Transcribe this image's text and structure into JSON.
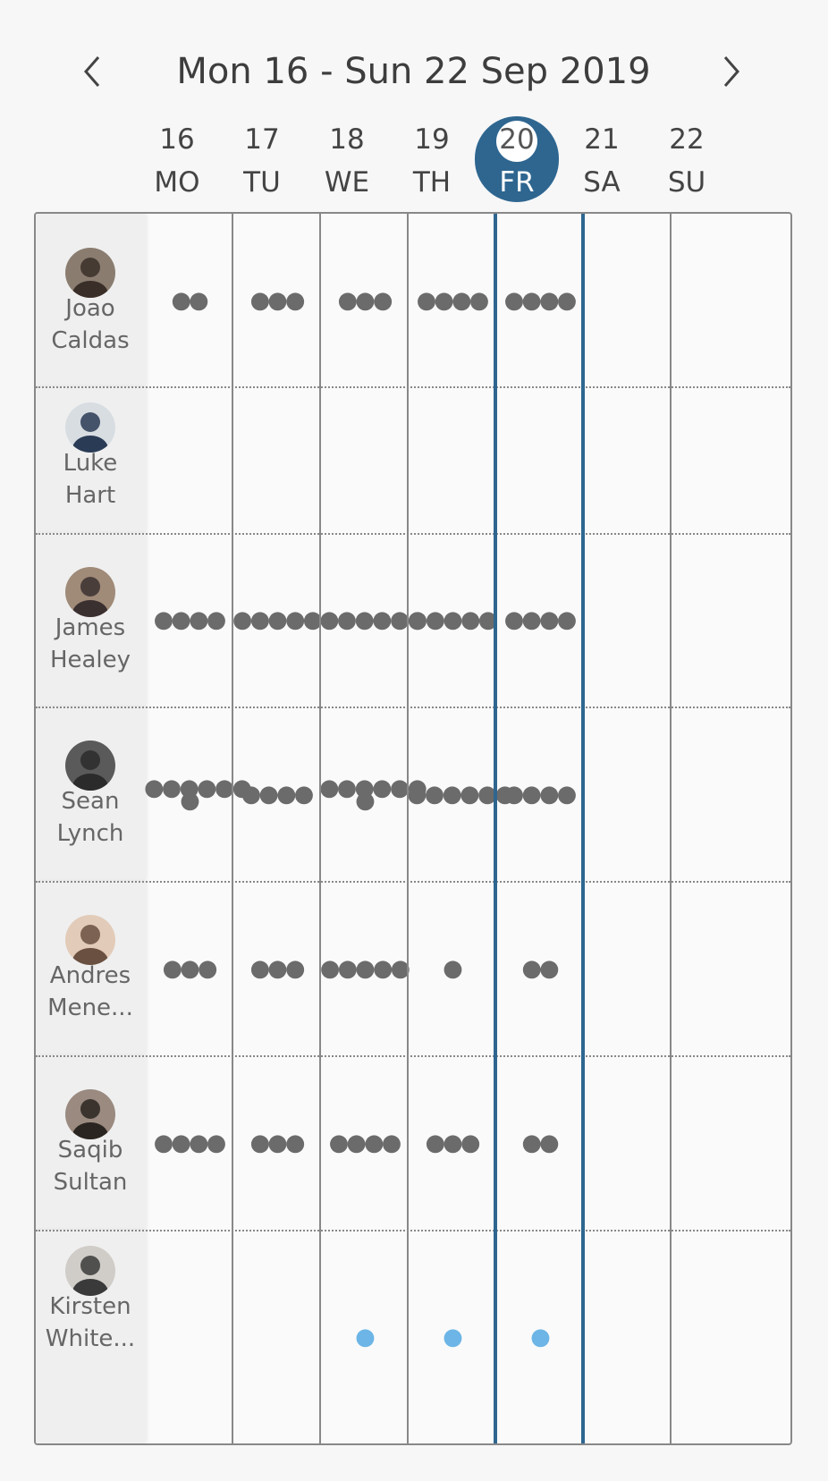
{
  "header": {
    "title": "Mon 16 - Sun 22 Sep 2019",
    "prev_icon": "chevron-left-icon",
    "next_icon": "chevron-right-icon"
  },
  "days": [
    {
      "num": "16",
      "wd": "MO",
      "today": false
    },
    {
      "num": "17",
      "wd": "TU",
      "today": false
    },
    {
      "num": "18",
      "wd": "WE",
      "today": false
    },
    {
      "num": "19",
      "wd": "TH",
      "today": false
    },
    {
      "num": "20",
      "wd": "FR",
      "today": true
    },
    {
      "num": "21",
      "wd": "SA",
      "today": false
    },
    {
      "num": "22",
      "wd": "SU",
      "today": false
    }
  ],
  "colors": {
    "accent": "#2e6690",
    "dot": "#6b6b6b",
    "dot_light": "#6cb5e6"
  },
  "people": [
    {
      "name": "Joao\nCaldas",
      "dots": [
        2,
        3,
        3,
        4,
        4,
        0,
        0
      ],
      "color": "dark"
    },
    {
      "name": "Luke\nHart",
      "dots": [
        0,
        0,
        0,
        0,
        0,
        0,
        0
      ],
      "color": "dark"
    },
    {
      "name": "James\nHealey",
      "dots": [
        4,
        5,
        6,
        5,
        4,
        0,
        0
      ],
      "color": "dark"
    },
    {
      "name": "Sean\nLynch",
      "dots": [
        7,
        4,
        7,
        6,
        4,
        0,
        0
      ],
      "color": "dark"
    },
    {
      "name": "Andres\nMene...",
      "dots": [
        3,
        3,
        5,
        1,
        2,
        0,
        0
      ],
      "color": "dark"
    },
    {
      "name": "Saqib\nSultan",
      "dots": [
        4,
        3,
        4,
        3,
        2,
        0,
        0
      ],
      "color": "dark"
    },
    {
      "name": "Kirsten\nWhite...",
      "dots": [
        0,
        0,
        1,
        1,
        1,
        0,
        0
      ],
      "color": "light"
    }
  ]
}
